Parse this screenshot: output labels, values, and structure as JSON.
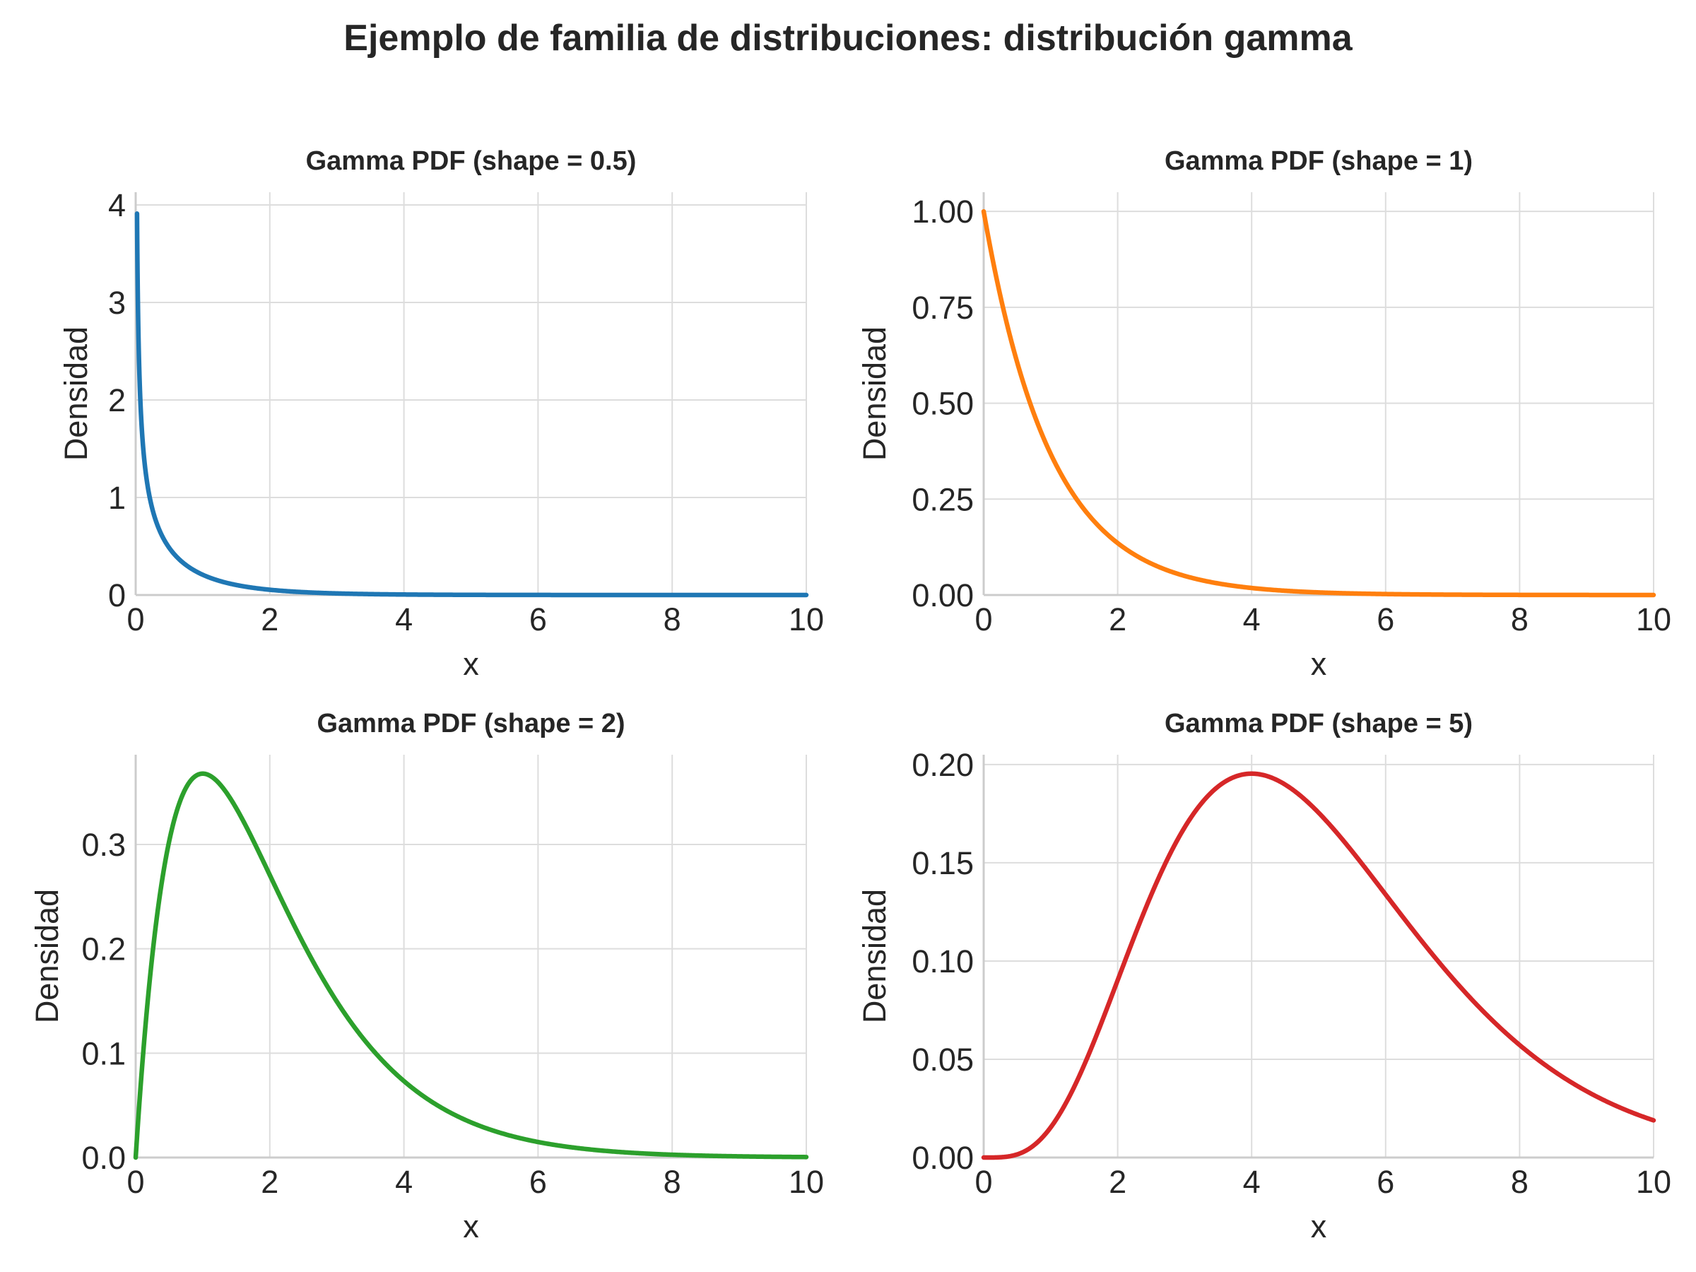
{
  "figure": {
    "title": "Ejemplo de familia de distribuciones: distribución gamma"
  },
  "chart_data": [
    {
      "type": "line",
      "title": "Gamma PDF (shape = 0.5)",
      "xlabel": "x",
      "ylabel": "Densidad",
      "xlim": [
        0,
        10
      ],
      "ylim": [
        0,
        4.13
      ],
      "xticks": [
        0,
        2,
        4,
        6,
        8,
        10
      ],
      "yticks": [
        "0",
        "1",
        "2",
        "3",
        "4"
      ],
      "ytick_values": [
        0,
        1,
        2,
        3,
        4
      ],
      "grid": true,
      "color": "#1f77b4",
      "series": [
        {
          "shape": 0.5,
          "x": [
            0.02,
            0.05,
            0.1,
            0.2,
            0.3,
            0.5,
            0.75,
            1,
            1.5,
            2,
            3,
            4,
            5,
            6,
            8,
            10
          ],
          "y": [
            3.93,
            2.45,
            1.69,
            1.06,
            0.78,
            0.48,
            0.31,
            0.21,
            0.1,
            0.054,
            0.016,
            0.005,
            0.0017,
            0.0006,
            0.0001,
            1e-05
          ]
        }
      ]
    },
    {
      "type": "line",
      "title": "Gamma PDF (shape = 1)",
      "xlabel": "x",
      "ylabel": "Densidad",
      "xlim": [
        0,
        10
      ],
      "ylim": [
        0,
        1.05
      ],
      "xticks": [
        0,
        2,
        4,
        6,
        8,
        10
      ],
      "yticks": [
        "0.00",
        "0.25",
        "0.50",
        "0.75",
        "1.00"
      ],
      "ytick_values": [
        0,
        0.25,
        0.5,
        0.75,
        1.0
      ],
      "grid": true,
      "color": "#ff7f0e",
      "series": [
        {
          "shape": 1,
          "x": [
            0,
            0.25,
            0.5,
            0.75,
            1,
            1.5,
            2,
            2.5,
            3,
            4,
            5,
            6,
            7,
            8,
            9,
            10
          ],
          "y": [
            1.0,
            0.779,
            0.607,
            0.472,
            0.368,
            0.223,
            0.135,
            0.082,
            0.05,
            0.018,
            0.0067,
            0.0025,
            0.0009,
            0.0003,
            0.0001,
            5e-05
          ]
        }
      ]
    },
    {
      "type": "line",
      "title": "Gamma PDF (shape = 2)",
      "xlabel": "x",
      "ylabel": "Densidad",
      "xlim": [
        0,
        10
      ],
      "ylim": [
        0,
        0.386
      ],
      "xticks": [
        0,
        2,
        4,
        6,
        8,
        10
      ],
      "yticks": [
        "0.0",
        "0.1",
        "0.2",
        "0.3"
      ],
      "ytick_values": [
        0,
        0.1,
        0.2,
        0.3
      ],
      "grid": true,
      "color": "#2ca02c",
      "series": [
        {
          "shape": 2,
          "x": [
            0,
            0.1,
            0.25,
            0.5,
            0.75,
            1,
            1.5,
            2,
            2.5,
            3,
            4,
            5,
            6,
            7,
            8,
            9,
            10
          ],
          "y": [
            0,
            0.09,
            0.195,
            0.303,
            0.354,
            0.368,
            0.335,
            0.271,
            0.205,
            0.149,
            0.073,
            0.034,
            0.015,
            0.0064,
            0.0027,
            0.0011,
            0.00045
          ]
        }
      ]
    },
    {
      "type": "line",
      "title": "Gamma PDF (shape = 5)",
      "xlabel": "x",
      "ylabel": "Densidad",
      "xlim": [
        0,
        10
      ],
      "ylim": [
        0,
        0.205
      ],
      "xticks": [
        0,
        2,
        4,
        6,
        8,
        10
      ],
      "yticks": [
        "0.00",
        "0.05",
        "0.10",
        "0.15",
        "0.20"
      ],
      "ytick_values": [
        0,
        0.05,
        0.1,
        0.15,
        0.2
      ],
      "grid": true,
      "color": "#d62728",
      "series": [
        {
          "shape": 5,
          "x": [
            0,
            0.5,
            1,
            1.5,
            2,
            2.5,
            3,
            3.5,
            4,
            4.5,
            5,
            5.5,
            6,
            7,
            8,
            9,
            10
          ],
          "y": [
            0,
            0.0002,
            0.0153,
            0.047,
            0.09,
            0.134,
            0.168,
            0.189,
            0.195,
            0.19,
            0.175,
            0.157,
            0.134,
            0.091,
            0.057,
            0.034,
            0.019
          ]
        }
      ]
    }
  ]
}
